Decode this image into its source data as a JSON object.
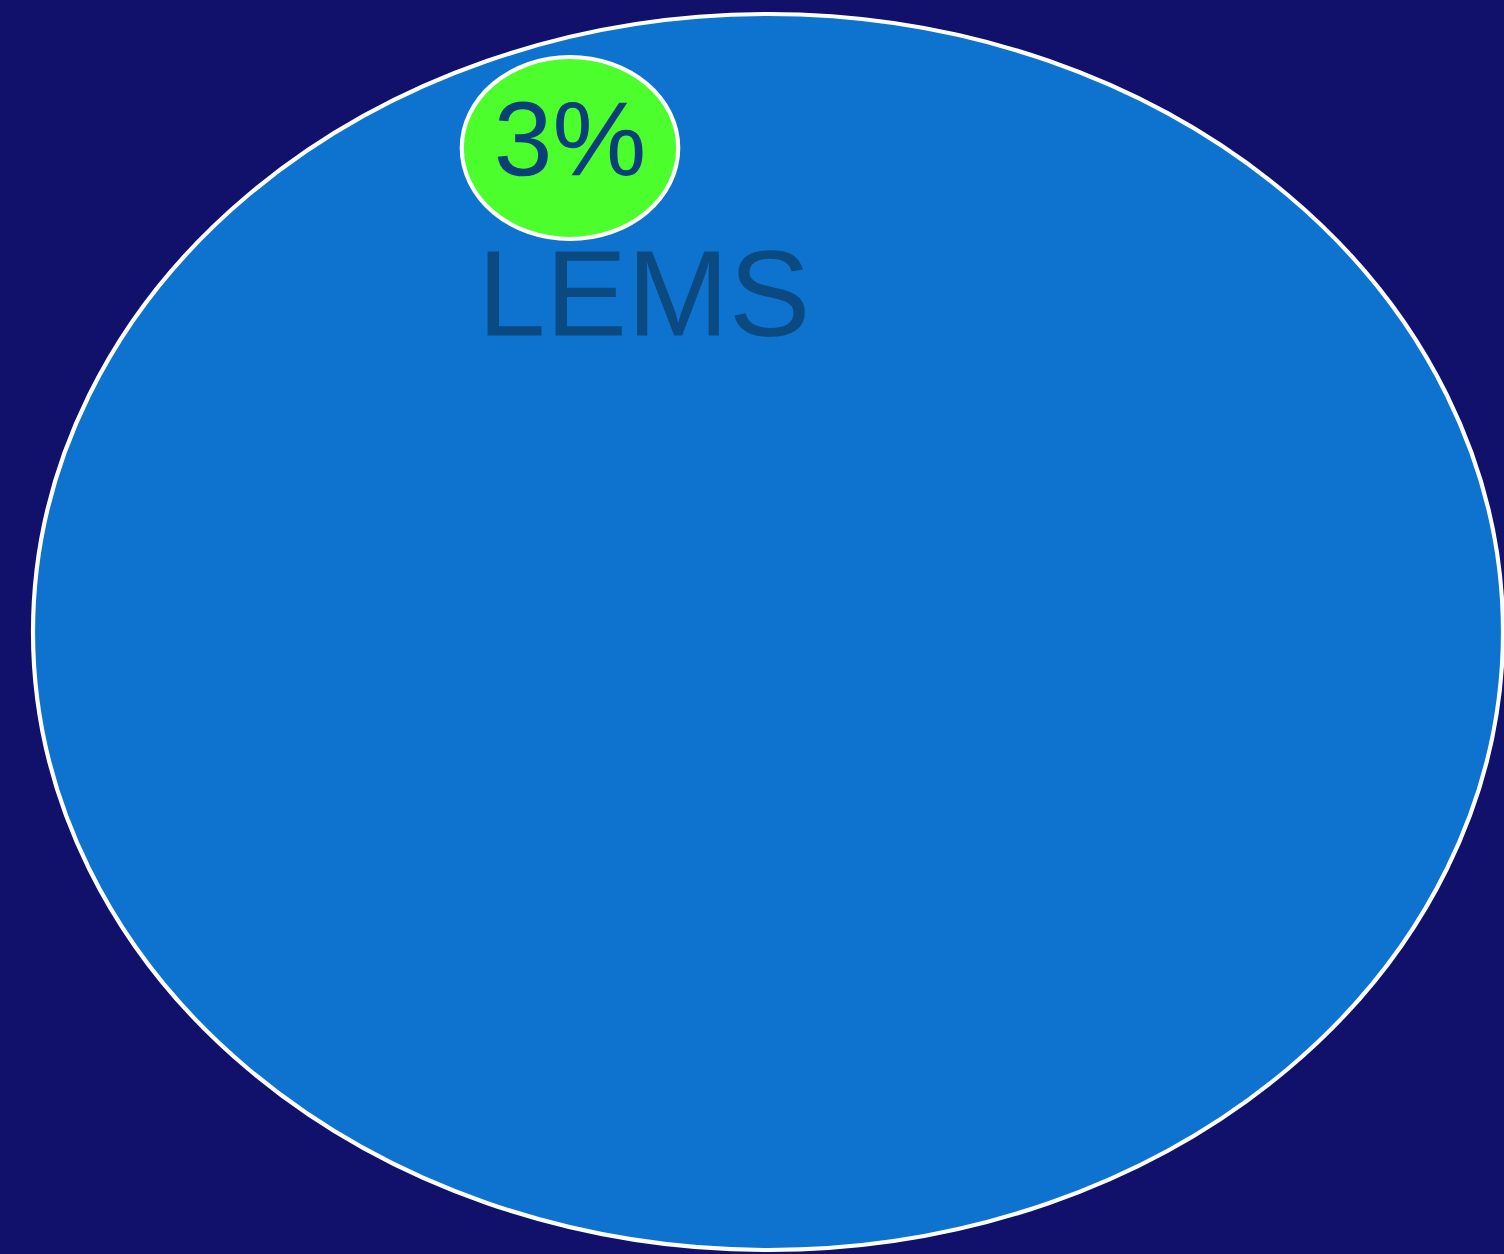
{
  "chart_data": {
    "type": "other",
    "categories": [
      null,
      "LEMS"
    ],
    "values": [
      null,
      3
    ],
    "value_labels": [
      null,
      "3%"
    ],
    "colors": [
      "#0e73cf",
      "#4cff2c"
    ]
  }
}
